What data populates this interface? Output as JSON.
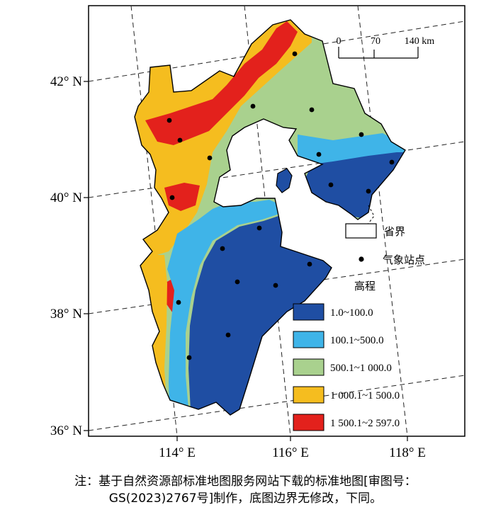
{
  "latitude_labels": [
    "42° N",
    "40° N",
    "38° N",
    "36° N"
  ],
  "longitude_labels": [
    "114° E",
    "116° E",
    "118° E"
  ],
  "scale_bar": {
    "ticks": [
      "0",
      "70",
      "140 km"
    ]
  },
  "legend": {
    "boundary_label": "省界",
    "station_label": "气象站点",
    "elevation_title": "高程",
    "classes": [
      {
        "label": "1.0~100.0",
        "color": "#1f4ea3"
      },
      {
        "label": "100.1~500.0",
        "color": "#3fb4e8"
      },
      {
        "label": "500.1~1 000.0",
        "color": "#a9d18e"
      },
      {
        "label": "1 000.1~1 500.0",
        "color": "#f5bd1f"
      },
      {
        "label": "1 500.1~2 597.0",
        "color": "#e3211c"
      }
    ]
  },
  "note": {
    "line1": "注：基于自然资源部标准地图服务网站下载的标准地图[审图号：",
    "line2": "GS(2023)2767号]制作，底图边界无修改，下同。"
  }
}
